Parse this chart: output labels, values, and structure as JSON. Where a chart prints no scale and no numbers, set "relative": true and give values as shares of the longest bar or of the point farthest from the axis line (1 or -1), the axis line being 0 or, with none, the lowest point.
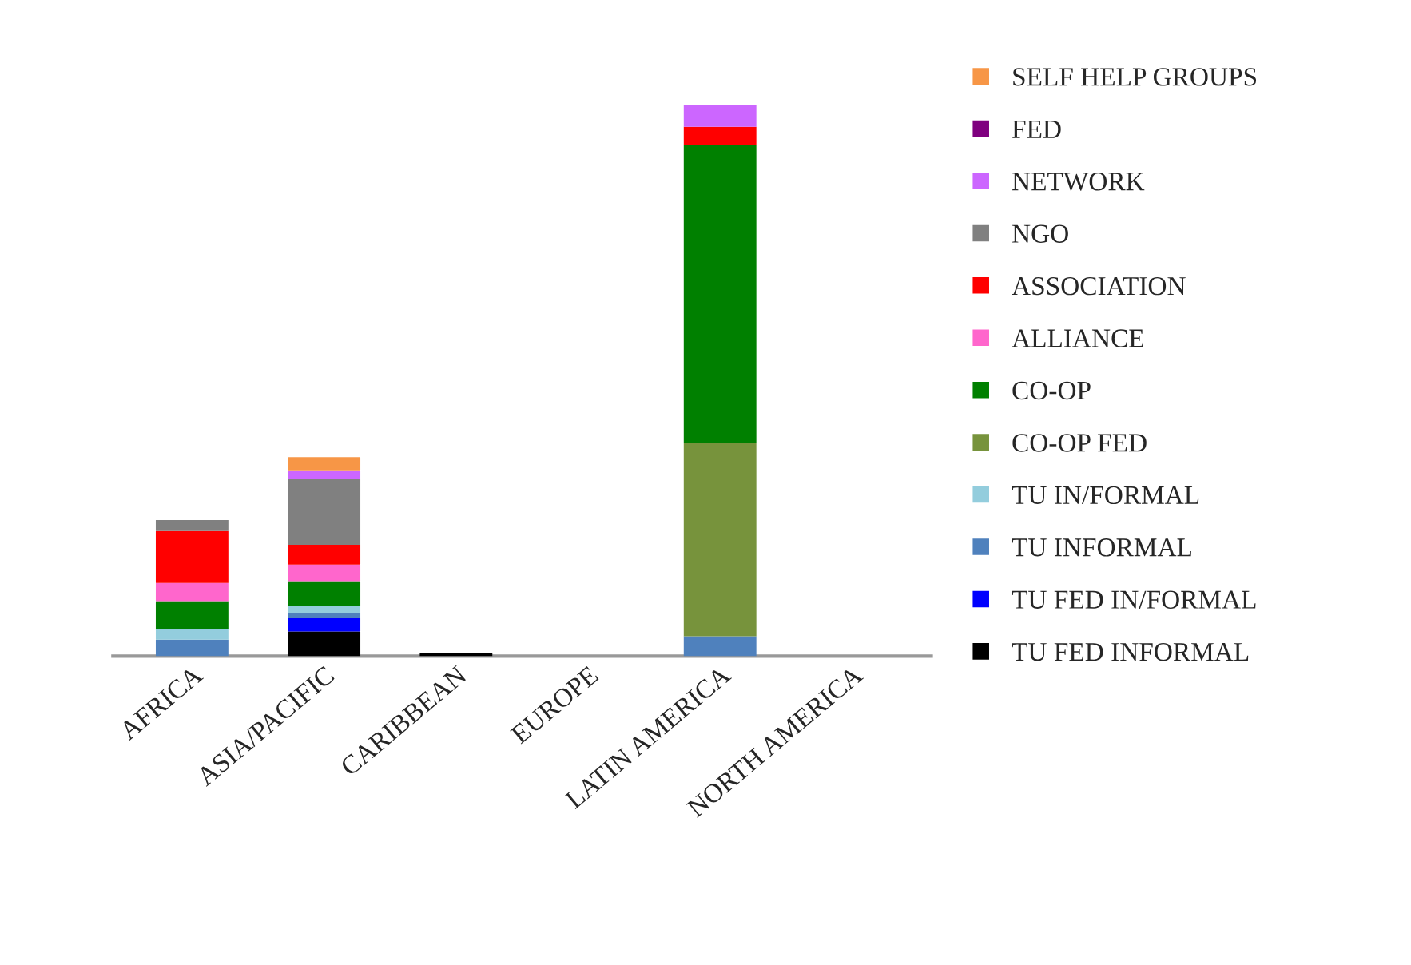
{
  "chart_data": {
    "type": "bar",
    "stacked": true,
    "relative": true,
    "legend": "right",
    "grid": false,
    "categories": [
      "AFRICA",
      "ASIA/PACIFIC",
      "CARIBBEAN",
      "EUROPE",
      "LATIN AMERICA",
      "NORTH AMERICA"
    ],
    "series": [
      {
        "name": "TU FED INFORMAL",
        "color": "#000000",
        "values": [
          null,
          0.045,
          0.006,
          null,
          null,
          null
        ]
      },
      {
        "name": "TU FED IN/FORMAL",
        "color": "#0000ff",
        "values": [
          null,
          0.024,
          null,
          null,
          null,
          null
        ]
      },
      {
        "name": "TU INFORMAL",
        "color": "#4f81bd",
        "values": [
          0.03,
          0.01,
          null,
          null,
          0.036,
          null
        ]
      },
      {
        "name": "TU IN/FORMAL",
        "color": "#93cddd",
        "values": [
          0.02,
          0.012,
          null,
          null,
          null,
          null
        ]
      },
      {
        "name": "CO-OP FED",
        "color": "#77933c",
        "values": [
          null,
          null,
          null,
          null,
          0.35,
          null
        ]
      },
      {
        "name": "CO-OP",
        "color": "#008000",
        "values": [
          0.05,
          0.045,
          null,
          null,
          0.541,
          null
        ]
      },
      {
        "name": "ALLIANCE",
        "color": "#ff66cc",
        "values": [
          0.033,
          0.03,
          null,
          null,
          null,
          null
        ]
      },
      {
        "name": "ASSOCIATION",
        "color": "#ff0000",
        "values": [
          0.094,
          0.036,
          null,
          null,
          0.033,
          null
        ]
      },
      {
        "name": "NGO",
        "color": "#808080",
        "values": [
          0.02,
          0.12,
          null,
          null,
          null,
          null
        ]
      },
      {
        "name": "NETWORK",
        "color": "#cc66ff",
        "values": [
          null,
          0.015,
          null,
          null,
          0.04,
          null
        ]
      },
      {
        "name": "FED",
        "color": "#7f007f",
        "values": [
          null,
          null,
          null,
          null,
          null,
          null
        ]
      },
      {
        "name": "SELF HELP GROUPS",
        "color": "#f79646",
        "values": [
          null,
          0.024,
          null,
          null,
          null,
          null
        ]
      }
    ]
  }
}
